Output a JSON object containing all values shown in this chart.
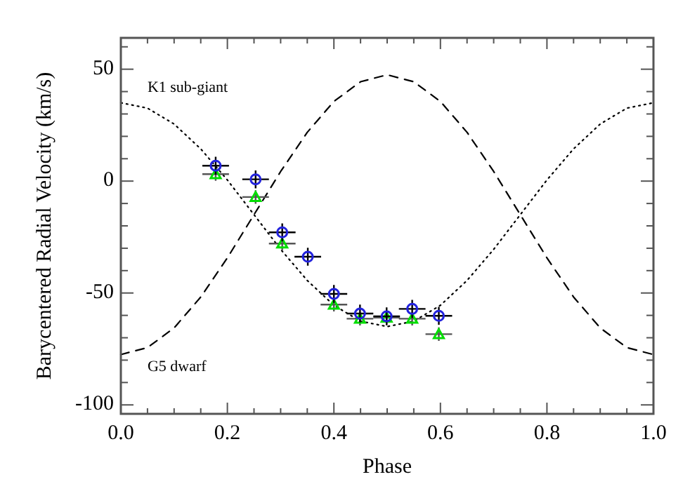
{
  "chart_data": {
    "type": "scatter",
    "xlabel": "Phase",
    "ylabel": "Barycentered Radial Velocity (km/s)",
    "xlim": [
      0,
      1
    ],
    "ylim": [
      -104,
      64
    ],
    "xticks": [
      {
        "value": 0,
        "label": "0.0"
      },
      {
        "value": 0.05,
        "label": null
      },
      {
        "value": 0.1,
        "label": null
      },
      {
        "value": 0.15,
        "label": null
      },
      {
        "value": 0.2,
        "label": "0.2"
      },
      {
        "value": 0.25,
        "label": null
      },
      {
        "value": 0.3,
        "label": null
      },
      {
        "value": 0.35,
        "label": null
      },
      {
        "value": 0.4,
        "label": "0.4"
      },
      {
        "value": 0.45,
        "label": null
      },
      {
        "value": 0.5,
        "label": null
      },
      {
        "value": 0.55,
        "label": null
      },
      {
        "value": 0.6,
        "label": "0.6"
      },
      {
        "value": 0.65,
        "label": null
      },
      {
        "value": 0.7,
        "label": null
      },
      {
        "value": 0.75,
        "label": null
      },
      {
        "value": 0.8,
        "label": "0.8"
      },
      {
        "value": 0.85,
        "label": null
      },
      {
        "value": 0.9,
        "label": null
      },
      {
        "value": 0.95,
        "label": null
      },
      {
        "value": 1,
        "label": "1.0"
      }
    ],
    "yticks": [
      {
        "value": -100,
        "label": "-100"
      },
      {
        "value": -90,
        "label": null
      },
      {
        "value": -80,
        "label": null
      },
      {
        "value": -70,
        "label": null
      },
      {
        "value": -60,
        "label": null
      },
      {
        "value": -50,
        "label": "-50"
      },
      {
        "value": -40,
        "label": null
      },
      {
        "value": -30,
        "label": null
      },
      {
        "value": -20,
        "label": null
      },
      {
        "value": -10,
        "label": null
      },
      0,
      {
        "value": 10,
        "label": null
      },
      {
        "value": 20,
        "label": null
      },
      {
        "value": 30,
        "label": null
      },
      {
        "value": 40,
        "label": null
      },
      50,
      {
        "value": 60,
        "label": null
      }
    ],
    "grid": false,
    "legend": false,
    "series": [
      {
        "type": "line",
        "name": "K1 sub-giant",
        "line_style": "dotted",
        "marker": "none",
        "color": "#000000",
        "x": [
          0,
          0.05,
          0.1,
          0.15,
          0.2,
          0.25,
          0.3,
          0.35,
          0.4,
          0.45,
          0.5,
          0.55,
          0.6,
          0.65,
          0.7,
          0.75,
          0.8,
          0.85,
          0.9,
          0.95,
          1
        ],
        "values": [
          35,
          32.6,
          25.5,
          14.4,
          0.5,
          -15,
          -30.5,
          -44.4,
          -55.5,
          -62.6,
          -65,
          -62.6,
          -55.5,
          -44.4,
          -30.5,
          -15,
          0.5,
          14.4,
          25.5,
          32.6,
          35
        ]
      },
      {
        "type": "line",
        "name": "G5 dwarf",
        "line_style": "dashed",
        "marker": "none",
        "color": "#000000",
        "x": [
          0,
          0.05,
          0.1,
          0.15,
          0.2,
          0.25,
          0.3,
          0.35,
          0.4,
          0.45,
          0.5,
          0.55,
          0.6,
          0.65,
          0.7,
          0.75,
          0.8,
          0.85,
          0.9,
          0.95,
          1
        ],
        "values": [
          -77.5,
          -74.4,
          -65.6,
          -51.8,
          -34.3,
          -15,
          4.3,
          21.8,
          35.6,
          44.4,
          47.5,
          44.4,
          35.6,
          21.8,
          4.3,
          -15,
          -34.3,
          -51.8,
          -65.6,
          -74.4,
          -77.5
        ]
      },
      {
        "marker": "triangle",
        "color": "#00dd00",
        "x": [
          0.178,
          0.253,
          0.303,
          0.4,
          0.449,
          0.499,
          0.547,
          0.597
        ],
        "values": [
          3.1,
          -7.1,
          -27.9,
          -55.2,
          -61.5,
          -61,
          -61.5,
          -68.4
        ],
        "xerrors": [
          0.025,
          0.025,
          0.025,
          0.025,
          0.025,
          0.025,
          0.025,
          0.025
        ],
        "errors": [
          3,
          3,
          3,
          3,
          3,
          3,
          3,
          3
        ]
      },
      {
        "marker": "circle",
        "color": "#2222dd",
        "x": [
          0.178,
          0.253,
          0.303,
          0.351,
          0.4,
          0.449,
          0.499,
          0.547,
          0.597
        ],
        "values": [
          6.9,
          0.8,
          -22.9,
          -33.8,
          -50.4,
          -59.2,
          -60.4,
          -57.1,
          -60.2
        ],
        "xerrors": [
          0.025,
          0.025,
          0.025,
          0.025,
          0.025,
          0.025,
          0.025,
          0.025,
          0.025
        ],
        "errors": [
          4,
          4,
          4,
          4,
          4,
          4,
          4,
          4,
          4
        ]
      }
    ]
  }
}
